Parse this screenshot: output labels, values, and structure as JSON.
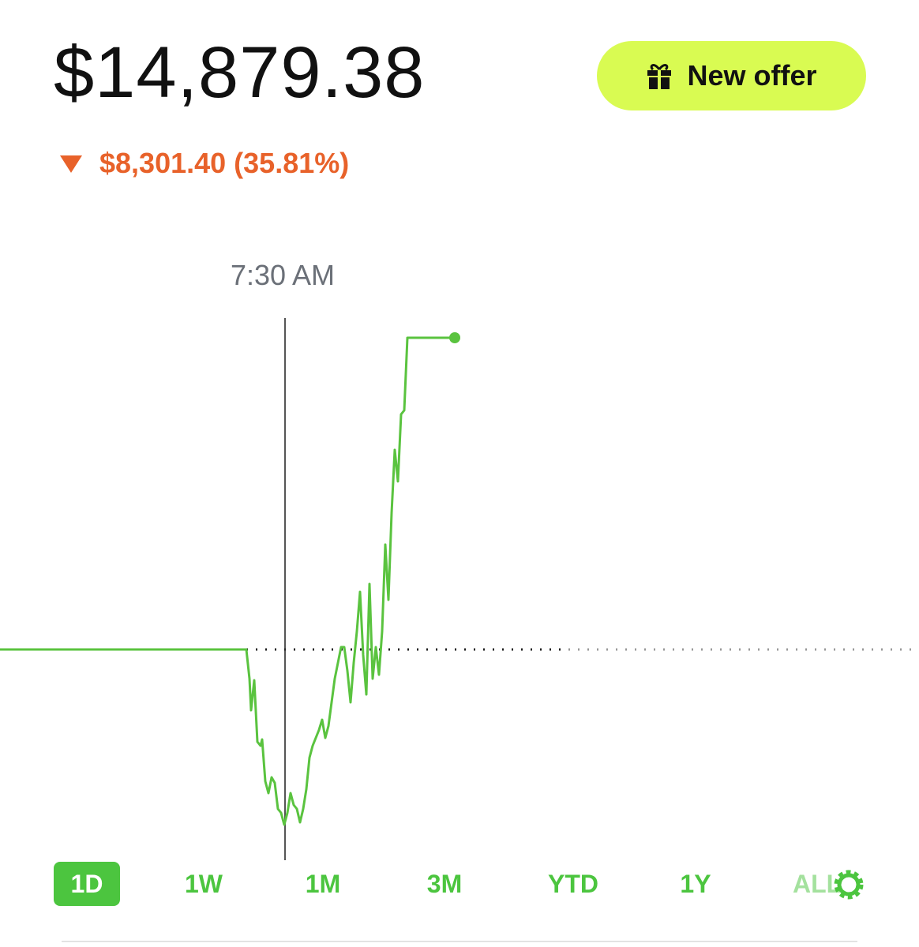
{
  "header": {
    "balance": "$14,879.38",
    "offer_button": "New offer",
    "change": "$8,301.40 (35.81%)"
  },
  "chart_data": {
    "type": "line",
    "cursor_label": "7:30 AM",
    "color": "#5ac33f",
    "baseline": 0,
    "xlim": [
      0,
      1164
    ],
    "ylim": [
      -377,
      823
    ],
    "x": [
      0,
      312,
      316,
      318,
      322,
      326,
      330,
      332,
      336,
      340,
      344,
      348,
      352,
      356,
      360,
      364,
      368,
      372,
      376,
      380,
      384,
      388,
      392,
      396,
      400,
      404,
      408,
      412,
      416,
      420,
      424,
      428,
      432,
      436,
      440,
      444,
      448,
      452,
      456,
      460,
      464,
      468,
      472,
      476,
      480,
      484,
      488,
      492,
      496,
      500,
      504,
      508,
      512,
      516,
      576
    ],
    "values": [
      0,
      0,
      -37,
      -77,
      -39,
      -117,
      -122,
      -114,
      -167,
      -182,
      -162,
      -169,
      -202,
      -207,
      -222,
      -207,
      -182,
      -197,
      -202,
      -219,
      -202,
      -177,
      -137,
      -122,
      -112,
      -102,
      -89,
      -112,
      -97,
      -67,
      -37,
      -17,
      3,
      3,
      -27,
      -67,
      -17,
      23,
      73,
      -7,
      -57,
      83,
      -37,
      3,
      -32,
      23,
      133,
      63,
      173,
      253,
      213,
      298,
      303,
      395,
      395
    ]
  },
  "ranges": [
    "1D",
    "1W",
    "1M",
    "3M",
    "YTD",
    "1Y",
    "ALL"
  ]
}
